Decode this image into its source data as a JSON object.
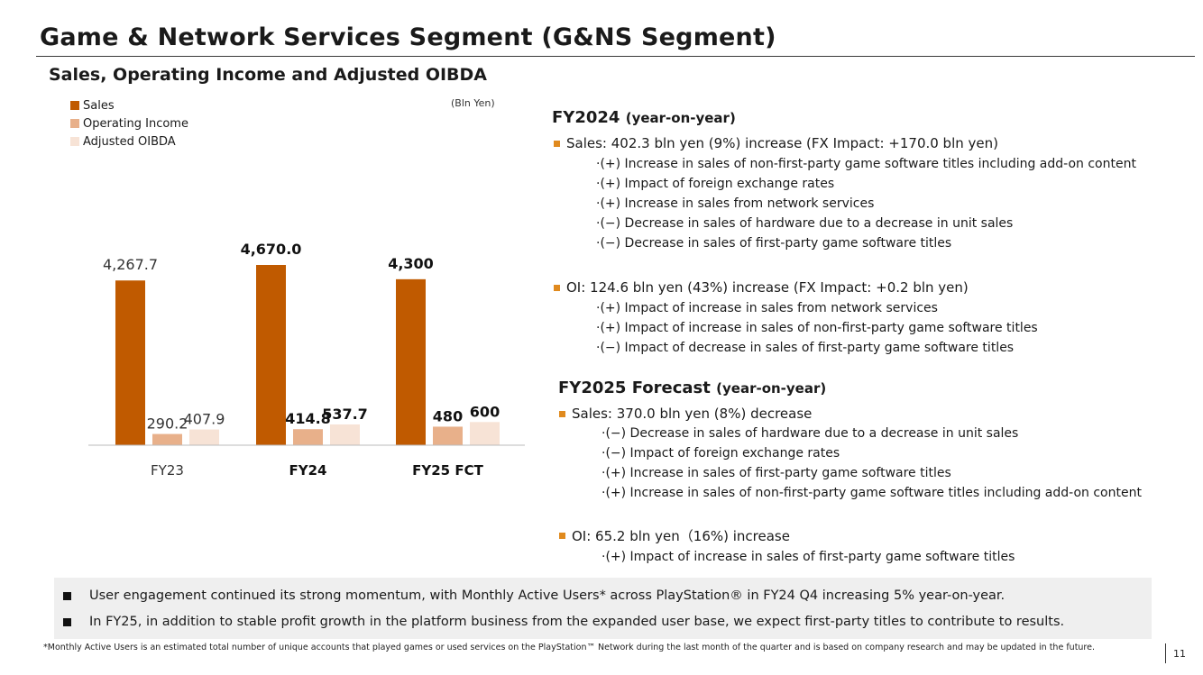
{
  "header": {
    "title": "Game & Network Services Segment (G&NS Segment)",
    "subtitle": "Sales, Operating Income and Adjusted OIBDA",
    "unit": "(Bln Yen)"
  },
  "chart_data": {
    "type": "bar",
    "categories": [
      "FY23",
      "FY24",
      "FY25 FCT"
    ],
    "series": [
      {
        "name": "Sales",
        "values": [
          4267.7,
          4670.0,
          4300
        ],
        "labels": [
          "4,267.7",
          "4,670.0",
          "4,300"
        ],
        "color": "#c05a00"
      },
      {
        "name": "Operating Income",
        "values": [
          290.2,
          414.8,
          480
        ],
        "labels": [
          "290.2",
          "414.8",
          "480"
        ],
        "color": "#e8b08a"
      },
      {
        "name": "Adjusted OIBDA",
        "values": [
          407.9,
          537.7,
          600
        ],
        "labels": [
          "407.9",
          "537.7",
          "600"
        ],
        "color": "#f7e3d6"
      }
    ],
    "ylim": [
      0,
      4800
    ],
    "legend": "top-left",
    "grid": false,
    "bold_categories": [
      false,
      true,
      true
    ]
  },
  "fy2024": {
    "heading": "FY2024",
    "heading_suffix": "(year-on-year)",
    "sales": {
      "text": "Sales: 402.3 bln yen (9%) increase (FX Impact: +170.0 bln yen)",
      "items": [
        "·(+) Increase in sales of non-first-party game software titles including add-on content",
        "·(+) Impact of foreign exchange rates",
        "·(+) Increase in sales from network services",
        "·(−) Decrease in sales of hardware due to a decrease in unit sales",
        "·(−) Decrease in sales of first-party game software titles"
      ]
    },
    "oi": {
      "text": "OI: 124.6 bln yen (43%) increase (FX Impact: +0.2 bln yen)",
      "items": [
        "·(+) Impact of increase in sales from network services",
        "·(+) Impact of increase in sales of non-first-party game software titles",
        "·(−) Impact of decrease in sales of first-party game software titles"
      ]
    }
  },
  "fy2025": {
    "heading": "FY2025 Forecast",
    "heading_suffix": "(year-on-year)",
    "sales": {
      "text": "Sales: 370.0 bln yen (8%) decrease",
      "items": [
        "·(−) Decrease in sales of hardware due to a decrease in unit sales",
        "·(−) Impact of foreign exchange rates",
        "·(+) Increase in sales of first-party game software titles",
        "·(+) Increase in sales of non-first-party game software titles including add-on content"
      ]
    },
    "oi": {
      "text": "OI: 65.2 bln yen（16%) increase",
      "items": [
        "·(+) Impact of increase in sales of first-party game software titles"
      ]
    }
  },
  "highlights": [
    "User engagement continued its strong momentum, with Monthly Active Users* across PlayStation® in FY24 Q4 increasing 5% year-on-year.",
    "In FY25, in addition to stable profit growth in the platform business from the expanded user base, we expect first-party titles to contribute to results."
  ],
  "footnote": "*Monthly Active Users is an estimated total number of unique accounts that played games or used services on the PlayStation™ Network during the last month of the quarter and is based on company research and may be updated in the future.",
  "page_number": "11",
  "colors": {
    "accent_bullet": "#e08a1e",
    "box_bg": "#efefef"
  }
}
